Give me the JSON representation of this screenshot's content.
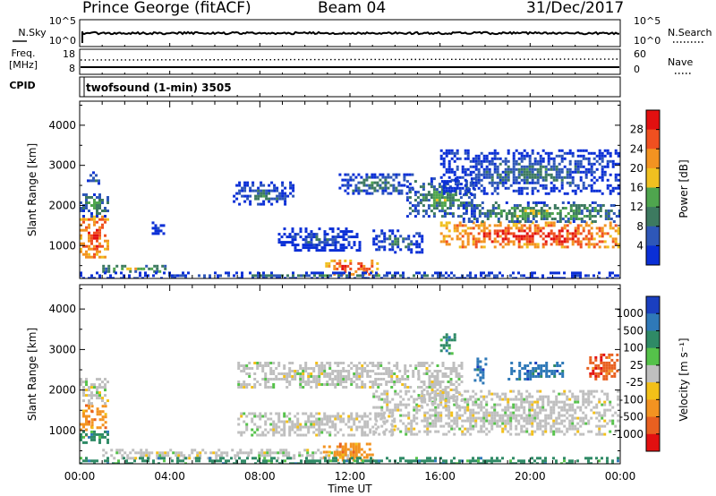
{
  "header": {
    "station": "Prince George (fitACF)",
    "beam": "Beam 04",
    "date": "31/Dec/2017"
  },
  "panels": {
    "nsky": {
      "left_label": "N.Sky",
      "right_label": "N.Search",
      "left_ticks": [
        "10^5",
        "10^0"
      ],
      "right_ticks": [
        "10^5",
        "10^0"
      ]
    },
    "freq": {
      "left_label_1": "Freq.",
      "left_label_2": "[MHz]",
      "left_ticks": [
        "18",
        "8"
      ],
      "right_label": "Nave",
      "right_ticks": [
        "60",
        "0"
      ]
    },
    "cpid": {
      "label": "CPID",
      "text": "twofsound (1-min) 3505"
    }
  },
  "x_axis": {
    "label": "Time UT",
    "ticks": [
      "00:00",
      "04:00",
      "08:00",
      "12:00",
      "16:00",
      "20:00",
      "00:00"
    ]
  },
  "power_panel": {
    "ylabel": "Slant Range [km]",
    "y_ticks": [
      "4000",
      "3000",
      "2000",
      "1000"
    ],
    "colorbar_label": "Power [dB]",
    "colorbar_ticks": [
      "28",
      "24",
      "20",
      "16",
      "12",
      "8",
      "4"
    ],
    "colors": [
      "#0a2fd6",
      "#2e57b8",
      "#3d7a60",
      "#4fa54e",
      "#f0c020",
      "#f39321",
      "#f05020",
      "#e21010"
    ]
  },
  "velocity_panel": {
    "ylabel": "Slant Range [km]",
    "y_ticks": [
      "4000",
      "3000",
      "2000",
      "1000"
    ],
    "colorbar_label": "Velocity [m s⁻¹]",
    "colorbar_ticks": [
      "1000",
      "500",
      "100",
      "25",
      "-25",
      "-100",
      "-500",
      "-1000"
    ],
    "colors": [
      "#1a3fc0",
      "#2f79b8",
      "#2f8a66",
      "#55c24a",
      "#bfbfbf",
      "#f3c018",
      "#f39321",
      "#e86020",
      "#e21010"
    ]
  },
  "chart_data": [
    {
      "type": "heatmap",
      "title": "Power",
      "x_range_hours": [
        0,
        24
      ],
      "y_range_km": [
        180,
        4600
      ],
      "value_range_db": [
        0,
        32
      ],
      "regions": [
        {
          "t": [
            0.0,
            1.2
          ],
          "r": [
            700,
            1750
          ],
          "value": 30
        },
        {
          "t": [
            0.0,
            1.3
          ],
          "r": [
            1750,
            2300
          ],
          "value": 14
        },
        {
          "t": [
            0.2,
            0.9
          ],
          "r": [
            2550,
            2850
          ],
          "value": 10
        },
        {
          "t": [
            1.0,
            3.8
          ],
          "r": [
            380,
            520
          ],
          "value": 18
        },
        {
          "t": [
            3.2,
            3.9
          ],
          "r": [
            1300,
            1600
          ],
          "value": 6
        },
        {
          "t": [
            6.8,
            9.5
          ],
          "r": [
            2000,
            2600
          ],
          "value": 10
        },
        {
          "t": [
            8.8,
            12.4
          ],
          "r": [
            900,
            1450
          ],
          "value": 8
        },
        {
          "t": [
            10.9,
            13.2
          ],
          "r": [
            300,
            650
          ],
          "value": 30
        },
        {
          "t": [
            11.5,
            14.8
          ],
          "r": [
            2300,
            2800
          ],
          "value": 12
        },
        {
          "t": [
            13.0,
            15.2
          ],
          "r": [
            850,
            1400
          ],
          "value": 10
        },
        {
          "t": [
            14.5,
            17.5
          ],
          "r": [
            1700,
            2700
          ],
          "value": 14
        },
        {
          "t": [
            16.0,
            24.0
          ],
          "r": [
            950,
            1600
          ],
          "value": 30
        },
        {
          "t": [
            17.0,
            24.0
          ],
          "r": [
            1600,
            2100
          ],
          "value": 16
        },
        {
          "t": [
            16.0,
            24.0
          ],
          "r": [
            2300,
            3400
          ],
          "value": 10
        },
        {
          "t": [
            0.0,
            24.0
          ],
          "r": [
            200,
            350
          ],
          "value": 10
        }
      ]
    },
    {
      "type": "heatmap",
      "title": "Velocity",
      "x_range_hours": [
        0,
        24
      ],
      "y_range_km": [
        180,
        4600
      ],
      "value_range_ms": [
        -1000,
        1000
      ],
      "regions": [
        {
          "t": [
            0.0,
            0.5
          ],
          "r": [
            900,
            1650
          ],
          "value": -100
        },
        {
          "t": [
            0.5,
            1.2
          ],
          "r": [
            1100,
            1700
          ],
          "value": -100
        },
        {
          "t": [
            0.0,
            1.2
          ],
          "r": [
            700,
            1000
          ],
          "value": 100
        },
        {
          "t": [
            0.0,
            1.3
          ],
          "r": [
            1700,
            2300
          ],
          "value": 0
        },
        {
          "t": [
            1.0,
            12.0
          ],
          "r": [
            350,
            550
          ],
          "value": 0
        },
        {
          "t": [
            10.8,
            13.0
          ],
          "r": [
            300,
            700
          ],
          "value": -100
        },
        {
          "t": [
            7.0,
            14.0
          ],
          "r": [
            900,
            1450
          ],
          "value": 0
        },
        {
          "t": [
            7.0,
            15.0
          ],
          "r": [
            2050,
            2700
          ],
          "value": 0
        },
        {
          "t": [
            13.0,
            24.0
          ],
          "r": [
            900,
            2000
          ],
          "value": 0
        },
        {
          "t": [
            15.0,
            17.0
          ],
          "r": [
            1600,
            2700
          ],
          "value": 0
        },
        {
          "t": [
            16.0,
            16.6
          ],
          "r": [
            2900,
            3400
          ],
          "value": 100
        },
        {
          "t": [
            17.5,
            18.0
          ],
          "r": [
            2150,
            2800
          ],
          "value": 500
        },
        {
          "t": [
            19.0,
            21.5
          ],
          "r": [
            2300,
            2700
          ],
          "value": 500
        },
        {
          "t": [
            22.5,
            24.0
          ],
          "r": [
            2300,
            2900
          ],
          "value": -500
        },
        {
          "t": [
            0.0,
            24.0
          ],
          "r": [
            200,
            350
          ],
          "value": 100
        }
      ]
    }
  ]
}
